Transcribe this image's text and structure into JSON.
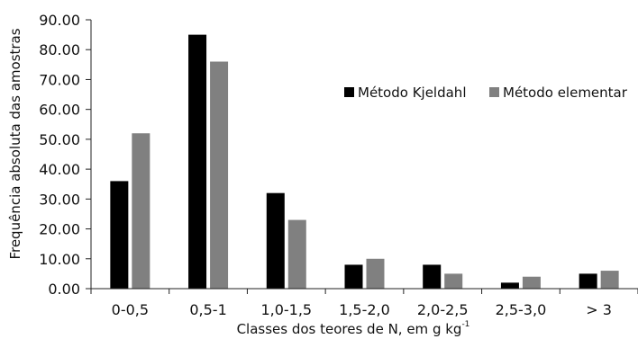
{
  "chart_data": {
    "type": "bar",
    "categories": [
      "0-0,5",
      "0,5-1",
      "1,0-1,5",
      "1,5-2,0",
      "2,0-2,5",
      "2,5-3,0",
      "> 3"
    ],
    "series": [
      {
        "name": "Método Kjeldahl",
        "color": "#000000",
        "values": [
          36,
          85,
          32,
          8,
          8,
          2,
          5
        ]
      },
      {
        "name": "Método elementar",
        "color": "#808080",
        "values": [
          52,
          76,
          23,
          10,
          5,
          4,
          6
        ]
      }
    ],
    "ylim": [
      0,
      90
    ],
    "yticks": [
      "0.00",
      "10.00",
      "20.00",
      "30.00",
      "40.00",
      "50.00",
      "60.00",
      "70.00",
      "80.00",
      "90.00"
    ],
    "ylabel": "Frequência absoluta das amostras",
    "xlabel": "Classes dos teores de N, em g kg",
    "xlabel_superscript": "-1",
    "legend_position": "top-right",
    "grid": false
  }
}
